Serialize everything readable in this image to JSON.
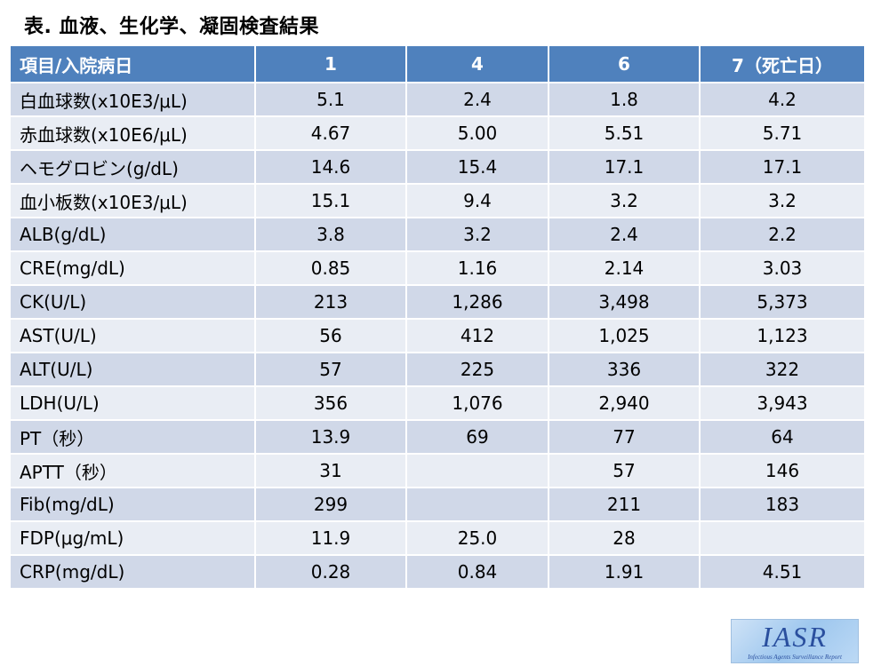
{
  "title": "表. 血液、生化学、凝固検査結果",
  "table": {
    "headers": [
      "項目/入院病日",
      "1",
      "4",
      "6",
      "7（死亡日）"
    ],
    "rows": [
      [
        "白血球数(x10E3/μL)",
        "5.1",
        "2.4",
        "1.8",
        "4.2"
      ],
      [
        "赤血球数(x10E6/μL)",
        "4.67",
        "5.00",
        "5.51",
        "5.71"
      ],
      [
        "ヘモグロビン(g/dL)",
        "14.6",
        "15.4",
        "17.1",
        "17.1"
      ],
      [
        "血小板数(x10E3/μL)",
        "15.1",
        "9.4",
        "3.2",
        "3.2"
      ],
      [
        "ALB(g/dL)",
        "3.8",
        "3.2",
        "2.4",
        "2.2"
      ],
      [
        "CRE(mg/dL)",
        "0.85",
        "1.16",
        "2.14",
        "3.03"
      ],
      [
        "CK(U/L)",
        "213",
        "1,286",
        "3,498",
        "5,373"
      ],
      [
        "AST(U/L)",
        "56",
        "412",
        "1,025",
        "1,123"
      ],
      [
        "ALT(U/L)",
        "57",
        "225",
        "336",
        "322"
      ],
      [
        "LDH(U/L)",
        "356",
        "1,076",
        "2,940",
        "3,943"
      ],
      [
        "PT（秒）",
        "13.9",
        "69",
        "77",
        "64"
      ],
      [
        "APTT（秒）",
        "31",
        "",
        "57",
        "146"
      ],
      [
        "Fib(mg/dL)",
        "299",
        "",
        "211",
        "183"
      ],
      [
        "FDP(μg/mL)",
        "11.9",
        "25.0",
        "28",
        ""
      ],
      [
        "CRP(mg/dL)",
        "0.28",
        "0.84",
        "1.91",
        "4.51"
      ]
    ]
  },
  "logo": {
    "main": "IASR",
    "sub": "Infectious Agents Surveillance Report"
  },
  "colors": {
    "header_bg": "#4f81bd",
    "row_odd_bg": "#d0d8e8",
    "row_even_bg": "#e9edf4",
    "logo_text": "#2a4f9e"
  }
}
